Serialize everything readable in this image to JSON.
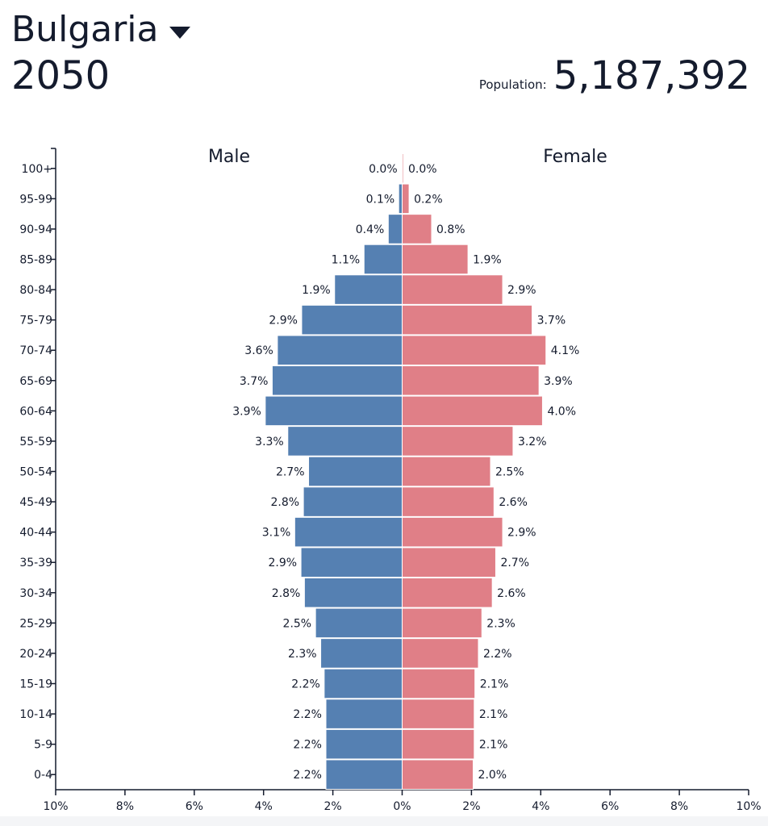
{
  "header": {
    "country": "Bulgaria",
    "year": "2050",
    "population_label": "Population:",
    "population_value": "5,187,392"
  },
  "colors": {
    "male": "#5580b2",
    "female": "#e07f87",
    "text": "#141b2d"
  },
  "chart_data": {
    "type": "bar",
    "orientation": "horizontal-pyramid",
    "title": "Bulgaria 2050",
    "categories": [
      "100+",
      "95-99",
      "90-94",
      "85-89",
      "80-84",
      "75-79",
      "70-74",
      "65-69",
      "60-64",
      "55-59",
      "50-54",
      "45-49",
      "40-44",
      "35-39",
      "30-34",
      "25-29",
      "20-24",
      "15-19",
      "10-14",
      "5-9",
      "0-4"
    ],
    "series": [
      {
        "name": "Male",
        "values": [
          0.02,
          0.1,
          0.4,
          1.1,
          1.95,
          2.9,
          3.6,
          3.75,
          3.95,
          3.3,
          2.7,
          2.85,
          3.1,
          2.92,
          2.82,
          2.5,
          2.35,
          2.25,
          2.2,
          2.2,
          2.2
        ],
        "labels": [
          "0.0%",
          "0.1%",
          "0.4%",
          "1.1%",
          "1.9%",
          "2.9%",
          "3.6%",
          "3.7%",
          "3.9%",
          "3.3%",
          "2.7%",
          "2.8%",
          "3.1%",
          "2.9%",
          "2.8%",
          "2.5%",
          "2.3%",
          "2.2%",
          "2.2%",
          "2.2%",
          "2.2%"
        ]
      },
      {
        "name": "Female",
        "values": [
          0.02,
          0.2,
          0.85,
          1.9,
          2.9,
          3.75,
          4.15,
          3.95,
          4.05,
          3.2,
          2.55,
          2.65,
          2.9,
          2.7,
          2.6,
          2.3,
          2.2,
          2.1,
          2.08,
          2.08,
          2.05
        ],
        "labels": [
          "0.0%",
          "0.2%",
          "0.8%",
          "1.9%",
          "2.9%",
          "3.7%",
          "4.1%",
          "3.9%",
          "4.0%",
          "3.2%",
          "2.5%",
          "2.6%",
          "2.9%",
          "2.7%",
          "2.6%",
          "2.3%",
          "2.2%",
          "2.1%",
          "2.1%",
          "2.1%",
          "2.0%"
        ]
      }
    ],
    "xlim": [
      -10,
      10
    ],
    "xticks": [
      -10,
      -8,
      -6,
      -4,
      -2,
      0,
      2,
      4,
      6,
      8,
      10
    ],
    "xtick_labels": [
      "10%",
      "8%",
      "6%",
      "4%",
      "2%",
      "0%",
      "2%",
      "4%",
      "6%",
      "8%",
      "10%"
    ],
    "legend": [
      "Male",
      "Female"
    ]
  }
}
